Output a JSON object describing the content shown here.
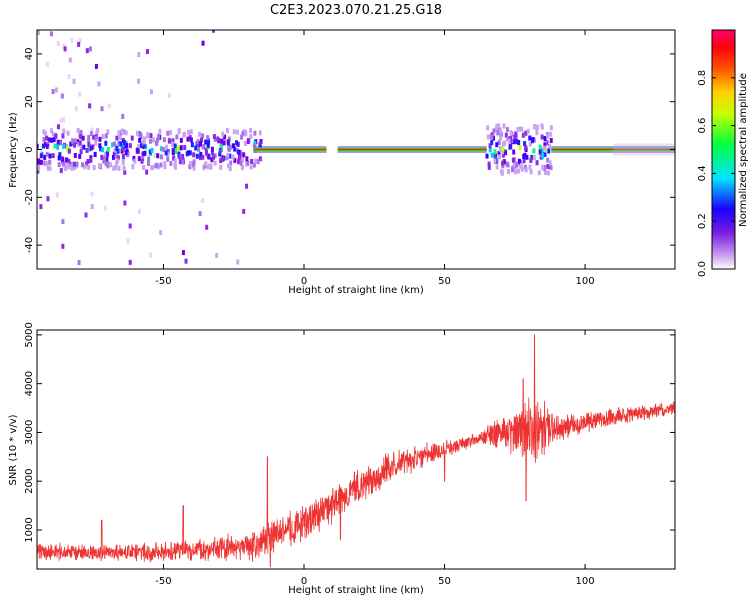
{
  "chart_data": [
    {
      "type": "heatmap",
      "title": "C2E3.2023.070.21.25.G18",
      "xlabel": "Height of straight line (km)",
      "ylabel": "Frequency (Hz)",
      "xlim": [
        -95,
        132
      ],
      "ylim": [
        -50,
        50
      ],
      "xticks": [
        -50,
        0,
        50,
        100
      ],
      "yticks": [
        -40,
        -20,
        0,
        20,
        40
      ],
      "grid": false,
      "colorbar": {
        "label": "Normalized spectral amplitude",
        "ticks": [
          0.0,
          0.2,
          0.4,
          0.6,
          0.8
        ],
        "range": [
          0,
          1
        ],
        "colormap": [
          "#ffffff",
          "#8a2be2",
          "#0000ff",
          "#00ffff",
          "#00ff00",
          "#ffff00",
          "#ff8000",
          "#ff0000",
          "#ff0066"
        ]
      },
      "ridge": {
        "description_value": "strong tone near 0 Hz",
        "segments": [
          [
            -18,
            0
          ],
          [
            0,
            8
          ],
          [
            12,
            65
          ],
          [
            88,
            132
          ]
        ]
      },
      "scatter_regions": [
        {
          "x_range": [
            -95,
            -20
          ],
          "y_range": [
            -50,
            50
          ],
          "intensity": 0.15
        },
        {
          "x_range": [
            -95,
            -15
          ],
          "y_range": [
            -8,
            8
          ],
          "intensity": 0.35
        },
        {
          "x_range": [
            65,
            88
          ],
          "y_range": [
            -10,
            10
          ],
          "intensity": 0.4
        }
      ]
    },
    {
      "type": "line",
      "xlabel": "Height of straight line (km)",
      "ylabel": "SNR (10 * v/v)",
      "xlim": [
        -95,
        132
      ],
      "ylim": [
        200,
        5100
      ],
      "xticks": [
        -50,
        0,
        50,
        100
      ],
      "yticks": [
        1000,
        2000,
        3000,
        4000,
        5000
      ],
      "color": "#ee3333",
      "trend": {
        "x": [
          -95,
          -70,
          -50,
          -30,
          -20,
          -10,
          0,
          10,
          20,
          30,
          40,
          50,
          60,
          70,
          80,
          90,
          100,
          110,
          120,
          132
        ],
        "y": [
          550,
          520,
          560,
          620,
          650,
          900,
          1150,
          1500,
          1900,
          2250,
          2500,
          2650,
          2850,
          3000,
          3050,
          3100,
          3200,
          3300,
          3400,
          3500
        ]
      },
      "noise_amplitude": {
        "x": [
          -95,
          -50,
          -20,
          0,
          30,
          60,
          75,
          80,
          85,
          90,
          132
        ],
        "y": [
          200,
          220,
          350,
          450,
          380,
          150,
          500,
          800,
          650,
          300,
          150
        ]
      },
      "spikes": [
        {
          "x": -72,
          "y": 1200
        },
        {
          "x": -43,
          "y": 1500
        },
        {
          "x": -13,
          "y": 2500
        },
        {
          "x": -12,
          "y": 250
        },
        {
          "x": 13,
          "y": 800
        },
        {
          "x": 50,
          "y": 2000
        },
        {
          "x": 78,
          "y": 4100
        },
        {
          "x": 82,
          "y": 5000
        },
        {
          "x": 79,
          "y": 1600
        }
      ]
    }
  ]
}
